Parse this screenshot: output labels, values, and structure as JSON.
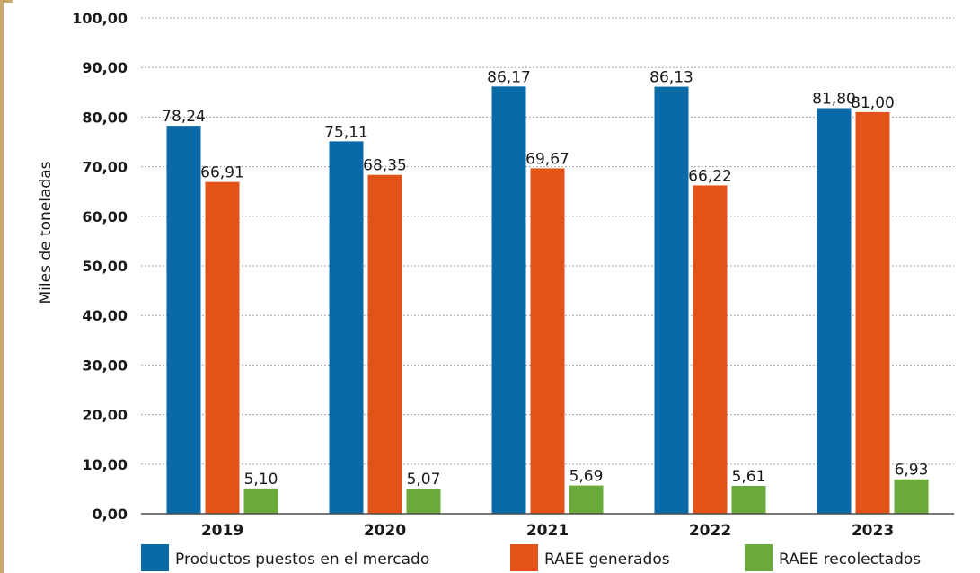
{
  "chart_data": {
    "type": "bar",
    "ylabel": "Miles de toneladas",
    "ylim": [
      0,
      100
    ],
    "ytick_step": 10,
    "ytick_labels": [
      "0,00",
      "10,00",
      "20,00",
      "30,00",
      "40,00",
      "50,00",
      "60,00",
      "70,00",
      "80,00",
      "90,00",
      "100,00"
    ],
    "categories": [
      "2019",
      "2020",
      "2021",
      "2022",
      "2023"
    ],
    "grid": "horizontal dotted",
    "legend_placement": "bottom",
    "series": [
      {
        "name": "Productos puestos en el mercado",
        "color": "#0a6aa8",
        "values": [
          78.24,
          75.11,
          86.17,
          86.13,
          81.8
        ],
        "labels": [
          "78,24",
          "75,11",
          "86,17",
          "86,13",
          "81,80"
        ]
      },
      {
        "name": "RAEE generados",
        "color": "#e2531a",
        "values": [
          66.91,
          68.35,
          69.67,
          66.22,
          81.0
        ],
        "labels": [
          "66,91",
          "68,35",
          "69,67",
          "66,22",
          "81,00"
        ]
      },
      {
        "name": "RAEE recolectados",
        "color": "#6aaa3a",
        "values": [
          5.1,
          5.07,
          5.69,
          5.61,
          6.93
        ],
        "labels": [
          "5,10",
          "5,07",
          "5,69",
          "5,61",
          "6,93"
        ]
      }
    ]
  }
}
